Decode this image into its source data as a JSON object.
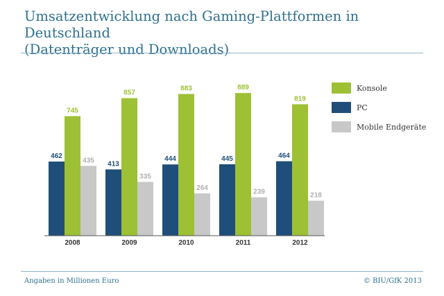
{
  "title_line1": "Umsatzentwicklung nach Gaming-Plattformen in Deutschland",
  "title_line2": "(Datenträger und Downloads)",
  "footer_note": "Angaben in Millionen Euro",
  "footer_source": "© BIU/GfK 2013",
  "chart_data": {
    "type": "bar",
    "categories": [
      "2008",
      "2009",
      "2010",
      "2011",
      "2012"
    ],
    "series": [
      {
        "name": "PC",
        "values": [
          462,
          413,
          444,
          445,
          464
        ],
        "color": "#1e4e79"
      },
      {
        "name": "Konsole",
        "values": [
          745,
          857,
          883,
          889,
          819
        ],
        "color": "#9dc035"
      },
      {
        "name": "Mobile Endgeräte",
        "values": [
          435,
          335,
          264,
          239,
          218
        ],
        "color": "#c8c8c8"
      }
    ],
    "legend_order": [
      "Konsole",
      "PC",
      "Mobile Endgeräte"
    ],
    "legend_position": "right",
    "label_colors": {
      "PC": "#1e4e79",
      "Konsole": "#9dc035",
      "Mobile Endgeräte": "#b0b0b0"
    },
    "ylim": [
      0,
      1000
    ],
    "grid": false
  }
}
